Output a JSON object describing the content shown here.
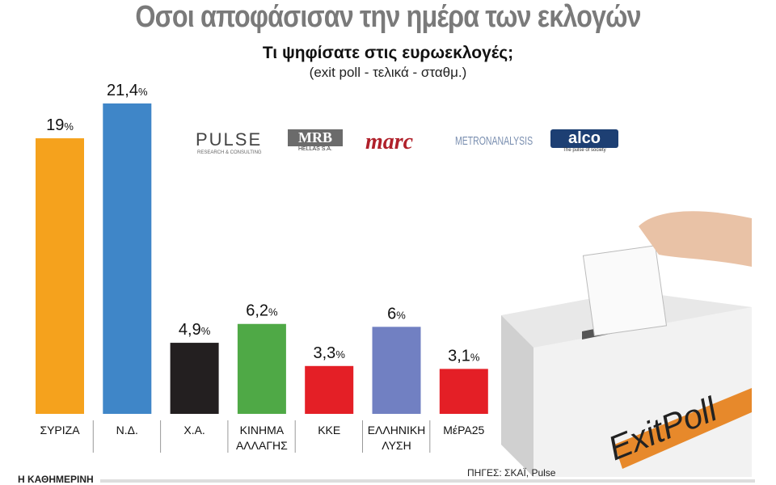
{
  "title": "Οσοι αποφάσισαν την ημέρα των εκλογών",
  "subtitle": "Τι ψηφίσατε στις ευρωεκλογές;",
  "note": "(exit poll - τελικά - σταθμ.)",
  "logos": [
    "PULSE",
    "MRB",
    "marc",
    "METRONANALYSIS",
    "alco"
  ],
  "logo_sublabels": [
    "RESEARCH & CONSULTING",
    "HELLAS S.A.",
    "",
    "",
    "The pulse of society"
  ],
  "ballot_box_label": "ExitPoll",
  "credit": "Η ΚΑΘΗΜΕΡΙΝΗ",
  "source": "ΠΗΓΕΣ: ΣΚΑΪ, Pulse",
  "chart_data": {
    "type": "bar",
    "categories": [
      [
        "ΣΥΡΙΖΑ"
      ],
      [
        "Ν.Δ."
      ],
      [
        "Χ.Α."
      ],
      [
        "ΚΙΝΗΜΑ",
        "ΑΛΛΑΓΗΣ"
      ],
      [
        "ΚΚΕ"
      ],
      [
        "ΕΛΛΗΝΙΚΗ",
        "ΛΥΣΗ"
      ],
      [
        "ΜέΡΑ25"
      ]
    ],
    "values": [
      19,
      21.4,
      4.9,
      6.2,
      3.3,
      6,
      3.1
    ],
    "value_labels": [
      "19",
      "21,4",
      "4,9",
      "6,2",
      "3,3",
      "6",
      "3,1"
    ],
    "unit": "%",
    "colors": [
      "#f5a21d",
      "#3f86c8",
      "#231f20",
      "#4fa946",
      "#e41f26",
      "#7180c2",
      "#e41f26"
    ],
    "ylim": [
      0,
      21.4
    ],
    "grid": false,
    "legend": "none"
  }
}
